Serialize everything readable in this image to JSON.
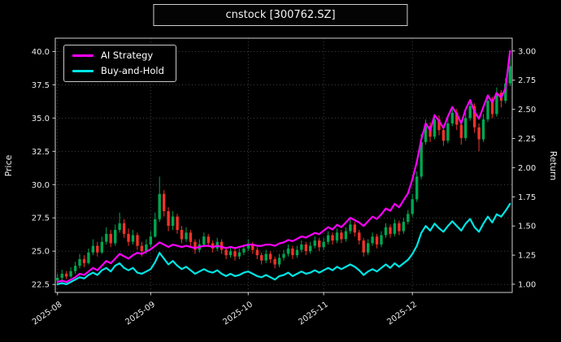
{
  "window": {
    "title": "cnstock [300762.SZ]"
  },
  "chart_data": {
    "type": "candlestick+line",
    "title": "cnstock [300762.SZ]",
    "ylabel_left": "Price",
    "ylabel_right": "Return",
    "grid": true,
    "legend_position": "upper-left",
    "price_ylim": [
      21.9,
      41.0
    ],
    "return_ylim": [
      0.93,
      3.11
    ],
    "price_ticks": [
      22.5,
      25.0,
      27.5,
      30.0,
      32.5,
      35.0,
      37.5,
      40.0
    ],
    "price_tick_labels": [
      "22.5",
      "25.0",
      "27.5",
      "30.0",
      "32.5",
      "35.0",
      "37.5",
      "40.0"
    ],
    "return_ticks": [
      1.0,
      1.25,
      1.5,
      1.75,
      2.0,
      2.25,
      2.5,
      2.75,
      3.0
    ],
    "return_tick_labels": [
      "1.00",
      "1.25",
      "1.50",
      "1.75",
      "2.00",
      "2.25",
      "2.50",
      "2.75",
      "3.00"
    ],
    "x_tick_labels": [
      "2025-08",
      "2025-09",
      "2025-10",
      "2025-11",
      "2025-12"
    ],
    "x_tick_indices": [
      0,
      21,
      43,
      60,
      80
    ],
    "colors": {
      "background": "#000000",
      "text": "#ececec",
      "grid": "#4a4a4a",
      "spine": "#cfcfcf",
      "up": "#00a650",
      "down": "#f23228"
    },
    "dates": [
      "2025-08-01",
      "2025-08-04",
      "2025-08-05",
      "2025-08-06",
      "2025-08-07",
      "2025-08-08",
      "2025-08-11",
      "2025-08-12",
      "2025-08-13",
      "2025-08-14",
      "2025-08-15",
      "2025-08-18",
      "2025-08-19",
      "2025-08-20",
      "2025-08-21",
      "2025-08-22",
      "2025-08-25",
      "2025-08-26",
      "2025-08-27",
      "2025-08-28",
      "2025-08-29",
      "2025-09-01",
      "2025-09-02",
      "2025-09-03",
      "2025-09-04",
      "2025-09-05",
      "2025-09-08",
      "2025-09-09",
      "2025-09-10",
      "2025-09-11",
      "2025-09-12",
      "2025-09-15",
      "2025-09-16",
      "2025-09-17",
      "2025-09-18",
      "2025-09-19",
      "2025-09-22",
      "2025-09-23",
      "2025-09-24",
      "2025-09-25",
      "2025-09-26",
      "2025-09-29",
      "2025-09-30",
      "2025-10-09",
      "2025-10-10",
      "2025-10-13",
      "2025-10-14",
      "2025-10-15",
      "2025-10-16",
      "2025-10-17",
      "2025-10-20",
      "2025-10-21",
      "2025-10-22",
      "2025-10-23",
      "2025-10-24",
      "2025-10-27",
      "2025-10-28",
      "2025-10-29",
      "2025-10-30",
      "2025-10-31",
      "2025-11-03",
      "2025-11-04",
      "2025-11-05",
      "2025-11-06",
      "2025-11-07",
      "2025-11-10",
      "2025-11-11",
      "2025-11-12",
      "2025-11-13",
      "2025-11-14",
      "2025-11-17",
      "2025-11-18",
      "2025-11-19",
      "2025-11-20",
      "2025-11-21",
      "2025-11-24",
      "2025-11-25",
      "2025-11-26",
      "2025-11-27",
      "2025-11-28",
      "2025-12-01",
      "2025-12-02",
      "2025-12-03",
      "2025-12-04",
      "2025-12-05",
      "2025-12-08",
      "2025-12-09",
      "2025-12-10",
      "2025-12-11",
      "2025-12-12",
      "2025-12-15",
      "2025-12-16",
      "2025-12-17",
      "2025-12-18",
      "2025-12-19",
      "2025-12-22",
      "2025-12-23",
      "2025-12-24",
      "2025-12-25",
      "2025-12-26",
      "2025-12-29",
      "2025-12-30",
      "2025-12-31"
    ],
    "ohlc": [
      [
        22.8,
        23.3,
        22.5,
        23.0
      ],
      [
        23.0,
        23.6,
        22.8,
        23.3
      ],
      [
        23.3,
        23.5,
        22.9,
        23.1
      ],
      [
        23.1,
        23.8,
        23.0,
        23.5
      ],
      [
        23.5,
        24.2,
        23.3,
        23.9
      ],
      [
        23.9,
        24.8,
        23.7,
        24.4
      ],
      [
        24.4,
        24.7,
        23.8,
        24.1
      ],
      [
        24.1,
        25.2,
        24.0,
        24.9
      ],
      [
        24.9,
        25.9,
        24.7,
        25.4
      ],
      [
        25.4,
        25.7,
        24.6,
        24.9
      ],
      [
        24.9,
        26.1,
        24.8,
        25.7
      ],
      [
        25.7,
        26.8,
        25.5,
        26.3
      ],
      [
        26.3,
        26.6,
        25.3,
        25.6
      ],
      [
        25.6,
        27.0,
        25.4,
        26.6
      ],
      [
        26.6,
        27.9,
        26.4,
        27.1
      ],
      [
        27.1,
        27.4,
        26.0,
        26.3
      ],
      [
        26.3,
        26.7,
        25.4,
        25.7
      ],
      [
        25.7,
        26.6,
        25.5,
        26.2
      ],
      [
        26.2,
        26.4,
        25.1,
        25.4
      ],
      [
        25.4,
        25.7,
        24.6,
        25.0
      ],
      [
        25.0,
        25.9,
        24.8,
        25.5
      ],
      [
        25.5,
        26.5,
        25.3,
        26.1
      ],
      [
        26.1,
        27.9,
        26.0,
        27.4
      ],
      [
        27.4,
        30.6,
        27.2,
        29.3
      ],
      [
        29.3,
        29.6,
        27.6,
        28.0
      ],
      [
        28.0,
        28.3,
        26.5,
        26.9
      ],
      [
        26.9,
        28.0,
        26.6,
        27.6
      ],
      [
        27.6,
        27.8,
        26.3,
        26.6
      ],
      [
        26.6,
        26.9,
        25.6,
        25.9
      ],
      [
        25.9,
        26.8,
        25.7,
        26.4
      ],
      [
        26.4,
        26.6,
        25.4,
        25.7
      ],
      [
        25.7,
        25.9,
        24.8,
        25.1
      ],
      [
        25.1,
        25.9,
        24.9,
        25.5
      ],
      [
        25.5,
        26.4,
        25.3,
        26.1
      ],
      [
        26.1,
        26.3,
        25.3,
        25.6
      ],
      [
        25.6,
        25.8,
        24.9,
        25.2
      ],
      [
        25.2,
        26.0,
        25.0,
        25.7
      ],
      [
        25.7,
        25.9,
        24.8,
        25.1
      ],
      [
        25.1,
        25.3,
        24.4,
        24.7
      ],
      [
        24.7,
        25.3,
        24.5,
        25.0
      ],
      [
        25.0,
        25.2,
        24.3,
        24.6
      ],
      [
        24.6,
        25.2,
        24.4,
        24.9
      ],
      [
        24.9,
        25.5,
        24.7,
        25.2
      ],
      [
        25.2,
        25.9,
        25.0,
        25.5
      ],
      [
        25.5,
        25.7,
        24.8,
        25.1
      ],
      [
        25.1,
        25.3,
        24.4,
        24.7
      ],
      [
        24.7,
        24.9,
        24.0,
        24.3
      ],
      [
        24.3,
        25.1,
        24.1,
        24.8
      ],
      [
        24.8,
        25.0,
        24.1,
        24.4
      ],
      [
        24.4,
        24.6,
        23.7,
        24.0
      ],
      [
        24.0,
        24.8,
        23.8,
        24.5
      ],
      [
        24.5,
        25.1,
        24.3,
        24.8
      ],
      [
        24.8,
        25.5,
        24.6,
        25.2
      ],
      [
        25.2,
        25.4,
        24.4,
        24.7
      ],
      [
        24.7,
        25.4,
        24.5,
        25.1
      ],
      [
        25.1,
        25.8,
        24.9,
        25.5
      ],
      [
        25.5,
        25.7,
        24.7,
        25.0
      ],
      [
        25.0,
        25.7,
        24.8,
        25.4
      ],
      [
        25.4,
        26.1,
        25.2,
        25.8
      ],
      [
        25.8,
        26.0,
        25.0,
        25.3
      ],
      [
        25.3,
        26.0,
        25.1,
        25.7
      ],
      [
        25.7,
        26.5,
        25.5,
        26.2
      ],
      [
        26.2,
        26.4,
        25.5,
        25.8
      ],
      [
        25.8,
        26.7,
        25.6,
        26.4
      ],
      [
        26.4,
        26.6,
        25.6,
        25.9
      ],
      [
        25.9,
        26.8,
        25.7,
        26.5
      ],
      [
        26.5,
        27.4,
        26.3,
        27.0
      ],
      [
        27.0,
        27.2,
        26.1,
        26.4
      ],
      [
        26.4,
        26.6,
        25.5,
        25.8
      ],
      [
        25.8,
        26.0,
        24.6,
        24.9
      ],
      [
        24.9,
        25.9,
        24.7,
        25.6
      ],
      [
        25.6,
        26.4,
        25.4,
        26.1
      ],
      [
        26.1,
        26.3,
        25.2,
        25.5
      ],
      [
        25.5,
        26.5,
        25.3,
        26.2
      ],
      [
        26.2,
        27.1,
        26.0,
        26.8
      ],
      [
        26.8,
        27.0,
        26.0,
        26.3
      ],
      [
        26.3,
        27.4,
        26.1,
        27.1
      ],
      [
        27.1,
        27.3,
        26.2,
        26.5
      ],
      [
        26.5,
        27.5,
        26.3,
        27.2
      ],
      [
        27.2,
        28.1,
        27.0,
        27.8
      ],
      [
        27.8,
        29.3,
        27.6,
        28.9
      ],
      [
        28.9,
        31.0,
        28.7,
        30.6
      ],
      [
        30.6,
        33.8,
        30.4,
        33.2
      ],
      [
        33.2,
        34.9,
        33.0,
        34.4
      ],
      [
        34.4,
        34.7,
        33.2,
        33.6
      ],
      [
        33.6,
        35.3,
        33.4,
        34.9
      ],
      [
        34.9,
        35.2,
        33.7,
        34.1
      ],
      [
        34.1,
        34.3,
        32.9,
        33.3
      ],
      [
        33.3,
        35.0,
        33.1,
        34.6
      ],
      [
        34.6,
        35.9,
        34.4,
        35.4
      ],
      [
        35.4,
        35.7,
        34.1,
        34.5
      ],
      [
        34.5,
        34.8,
        33.0,
        33.5
      ],
      [
        33.5,
        35.4,
        33.3,
        35.0
      ],
      [
        35.0,
        36.3,
        34.8,
        35.9
      ],
      [
        35.9,
        36.1,
        33.9,
        34.3
      ],
      [
        34.3,
        34.6,
        32.5,
        33.4
      ],
      [
        33.4,
        35.3,
        33.2,
        34.9
      ],
      [
        34.9,
        36.7,
        34.7,
        36.3
      ],
      [
        36.3,
        36.6,
        35.0,
        35.3
      ],
      [
        35.3,
        37.3,
        35.1,
        36.9
      ],
      [
        36.9,
        37.1,
        35.8,
        36.3
      ],
      [
        36.3,
        38.0,
        36.1,
        37.6
      ],
      [
        37.6,
        39.9,
        37.4,
        38.9
      ]
    ],
    "series": [
      {
        "name": "AI Strategy",
        "color": "#ff00ff",
        "axis": "return",
        "values": [
          1.02,
          1.03,
          1.02,
          1.04,
          1.06,
          1.09,
          1.08,
          1.11,
          1.14,
          1.12,
          1.16,
          1.2,
          1.18,
          1.22,
          1.26,
          1.24,
          1.22,
          1.25,
          1.27,
          1.26,
          1.28,
          1.3,
          1.33,
          1.36,
          1.34,
          1.32,
          1.34,
          1.33,
          1.32,
          1.33,
          1.32,
          1.31,
          1.32,
          1.33,
          1.33,
          1.32,
          1.33,
          1.32,
          1.31,
          1.32,
          1.31,
          1.32,
          1.33,
          1.34,
          1.34,
          1.33,
          1.33,
          1.34,
          1.34,
          1.33,
          1.35,
          1.36,
          1.38,
          1.37,
          1.39,
          1.41,
          1.4,
          1.42,
          1.44,
          1.43,
          1.46,
          1.49,
          1.47,
          1.51,
          1.49,
          1.53,
          1.57,
          1.55,
          1.53,
          1.5,
          1.54,
          1.58,
          1.56,
          1.6,
          1.65,
          1.63,
          1.69,
          1.66,
          1.72,
          1.78,
          1.9,
          2.05,
          2.24,
          2.38,
          2.32,
          2.45,
          2.4,
          2.34,
          2.44,
          2.52,
          2.46,
          2.38,
          2.5,
          2.58,
          2.48,
          2.42,
          2.52,
          2.62,
          2.56,
          2.64,
          2.6,
          2.68,
          3.0
        ]
      },
      {
        "name": "Buy-and-Hold",
        "color": "#00e5e5",
        "axis": "return",
        "values": [
          1.0,
          1.01,
          1.0,
          1.02,
          1.04,
          1.06,
          1.05,
          1.08,
          1.1,
          1.08,
          1.12,
          1.14,
          1.11,
          1.16,
          1.18,
          1.14,
          1.12,
          1.14,
          1.1,
          1.09,
          1.11,
          1.13,
          1.19,
          1.27,
          1.22,
          1.17,
          1.2,
          1.16,
          1.13,
          1.15,
          1.12,
          1.09,
          1.11,
          1.13,
          1.11,
          1.1,
          1.12,
          1.09,
          1.07,
          1.09,
          1.07,
          1.08,
          1.1,
          1.11,
          1.09,
          1.07,
          1.06,
          1.08,
          1.06,
          1.04,
          1.07,
          1.08,
          1.1,
          1.07,
          1.09,
          1.11,
          1.09,
          1.1,
          1.12,
          1.1,
          1.12,
          1.14,
          1.12,
          1.15,
          1.13,
          1.15,
          1.17,
          1.15,
          1.12,
          1.08,
          1.11,
          1.13,
          1.11,
          1.14,
          1.17,
          1.14,
          1.18,
          1.15,
          1.18,
          1.21,
          1.26,
          1.33,
          1.44,
          1.5,
          1.46,
          1.52,
          1.48,
          1.45,
          1.5,
          1.54,
          1.5,
          1.46,
          1.52,
          1.56,
          1.49,
          1.45,
          1.52,
          1.58,
          1.53,
          1.6,
          1.58,
          1.63,
          1.69
        ]
      }
    ]
  }
}
